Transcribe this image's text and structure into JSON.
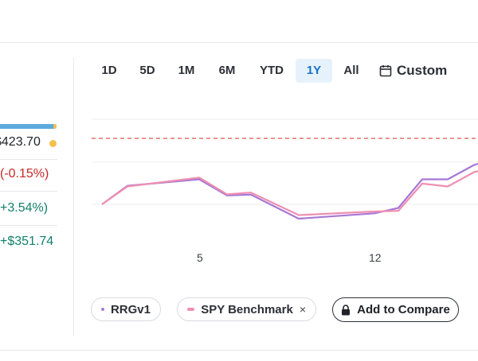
{
  "stats": {
    "value": "$423.70",
    "day_change": "(-0.15%)",
    "ytd_change": "+3.54%)",
    "total_gain": "+$351.74",
    "progress_fraction": 0.97
  },
  "ranges": {
    "tabs": [
      "1D",
      "5D",
      "1M",
      "6M",
      "YTD",
      "1Y",
      "All"
    ],
    "active": "1Y",
    "custom_label": "Custom"
  },
  "chart_data": {
    "type": "line",
    "x_tick_labels": [
      "5",
      "12"
    ],
    "grid": true,
    "reference_line": "dashed-red",
    "series": [
      {
        "name": "RRGv1",
        "color": "#a678d6",
        "values": [
          0.0,
          0.52,
          0.7,
          0.25,
          0.27,
          -0.4,
          -0.25,
          -0.1,
          0.7,
          0.7,
          1.1,
          1.2
        ]
      },
      {
        "name": "SPY Benchmark",
        "color": "#ef8fb1",
        "values": [
          0.0,
          0.5,
          0.75,
          0.28,
          0.33,
          -0.3,
          -0.2,
          -0.18,
          0.58,
          0.5,
          0.9,
          0.98
        ]
      }
    ]
  },
  "legend": {
    "rrg_label": "RRGv1",
    "spy_label": "SPY Benchmark",
    "remove_symbol": "×",
    "add_compare_label": "Add to Compare"
  }
}
